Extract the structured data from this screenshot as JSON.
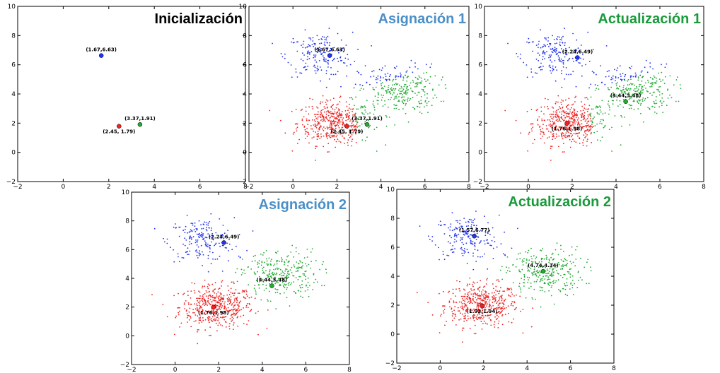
{
  "colors": {
    "blue_cluster": "#2233ee",
    "red_cluster": "#ee2222",
    "green_cluster": "#22aa33",
    "title_blue": "#4a8fc8",
    "title_green": "#1a9a3a",
    "title_black": "#000000"
  },
  "chart_data": [
    {
      "type": "scatter",
      "title": "Inicialización",
      "title_color": "black",
      "xlim": [
        -2,
        8
      ],
      "ylim": [
        -2,
        10
      ],
      "xticks": [
        "−2",
        "0",
        "2",
        "4",
        "6",
        "8"
      ],
      "yticks": [
        "−2",
        "0",
        "2",
        "4",
        "6",
        "8",
        "10"
      ],
      "show_points": false,
      "assignment": "none",
      "centroids": [
        {
          "cluster": "blue",
          "x": 1.67,
          "y": 6.63,
          "label": "(1.67,6.63)",
          "label_pos": "above"
        },
        {
          "cluster": "red",
          "x": 2.45,
          "y": 1.79,
          "label": "(2.45, 1.79)",
          "label_pos": "below"
        },
        {
          "cluster": "green",
          "x": 3.37,
          "y": 1.91,
          "label": "(3.37,1.91)",
          "label_pos": "above"
        }
      ]
    },
    {
      "type": "scatter",
      "title": "Asignación 1",
      "title_color": "blue",
      "xlim": [
        -2,
        8
      ],
      "ylim": [
        -2,
        10
      ],
      "xticks": [
        "−2",
        "0",
        "2",
        "4",
        "6",
        "8"
      ],
      "yticks": [
        "−2",
        "0",
        "2",
        "4",
        "6",
        "8",
        "10"
      ],
      "show_points": true,
      "assignment": "initial",
      "centroids": [
        {
          "cluster": "blue",
          "x": 1.67,
          "y": 6.63,
          "label": "(1.67,6.63)",
          "label_pos": "above"
        },
        {
          "cluster": "red",
          "x": 2.45,
          "y": 1.79,
          "label": "(2.45, 1.79)",
          "label_pos": "below"
        },
        {
          "cluster": "green",
          "x": 3.37,
          "y": 1.91,
          "label": "(3.37,1.91)",
          "label_pos": "above"
        }
      ]
    },
    {
      "type": "scatter",
      "title": "Actualización 1",
      "title_color": "green",
      "xlim": [
        -2,
        8
      ],
      "ylim": [
        -2,
        10
      ],
      "xticks": [
        "−2",
        "0",
        "2",
        "4",
        "6",
        "8"
      ],
      "yticks": [
        "−2",
        "0",
        "2",
        "4",
        "6",
        "8",
        "10"
      ],
      "show_points": true,
      "assignment": "initial",
      "centroids": [
        {
          "cluster": "blue",
          "x": 2.24,
          "y": 6.49,
          "label": "(2.24,6.49)",
          "label_pos": "above"
        },
        {
          "cluster": "red",
          "x": 1.76,
          "y": 1.98,
          "label": "(1.76,1.98)",
          "label_pos": "below"
        },
        {
          "cluster": "green",
          "x": 4.44,
          "y": 3.48,
          "label": "(4.44,3.48)",
          "label_pos": "above"
        }
      ]
    },
    {
      "type": "scatter",
      "title": "Asignación 2",
      "title_color": "blue",
      "xlim": [
        -2,
        8
      ],
      "ylim": [
        -2,
        10
      ],
      "xticks": [
        "−2",
        "0",
        "2",
        "4",
        "6",
        "8"
      ],
      "yticks": [
        "−2",
        "0",
        "2",
        "4",
        "6",
        "8",
        "10"
      ],
      "show_points": true,
      "assignment": "natural",
      "centroids": [
        {
          "cluster": "blue",
          "x": 2.24,
          "y": 6.49,
          "label": "(2.24,6.49)",
          "label_pos": "above"
        },
        {
          "cluster": "red",
          "x": 1.76,
          "y": 1.98,
          "label": "(1.76,1.98)",
          "label_pos": "below"
        },
        {
          "cluster": "green",
          "x": 4.44,
          "y": 3.48,
          "label": "(4.44,3.48)",
          "label_pos": "above"
        }
      ]
    },
    {
      "type": "scatter",
      "title": "Actualización 2",
      "title_color": "green",
      "xlim": [
        -2,
        8
      ],
      "ylim": [
        -2,
        10
      ],
      "xticks": [
        "−2",
        "0",
        "2",
        "4",
        "6",
        "8"
      ],
      "yticks": [
        "−2",
        "0",
        "2",
        "4",
        "6",
        "8",
        "10"
      ],
      "show_points": true,
      "assignment": "natural",
      "centroids": [
        {
          "cluster": "blue",
          "x": 1.57,
          "y": 6.77,
          "label": "(1.57,6.77)",
          "label_pos": "above"
        },
        {
          "cluster": "red",
          "x": 1.93,
          "y": 1.94,
          "label": "(1.93,1.94)",
          "label_pos": "below"
        },
        {
          "cluster": "green",
          "x": 4.74,
          "y": 4.34,
          "label": "(4.74,4.34)",
          "label_pos": "above"
        }
      ]
    }
  ]
}
